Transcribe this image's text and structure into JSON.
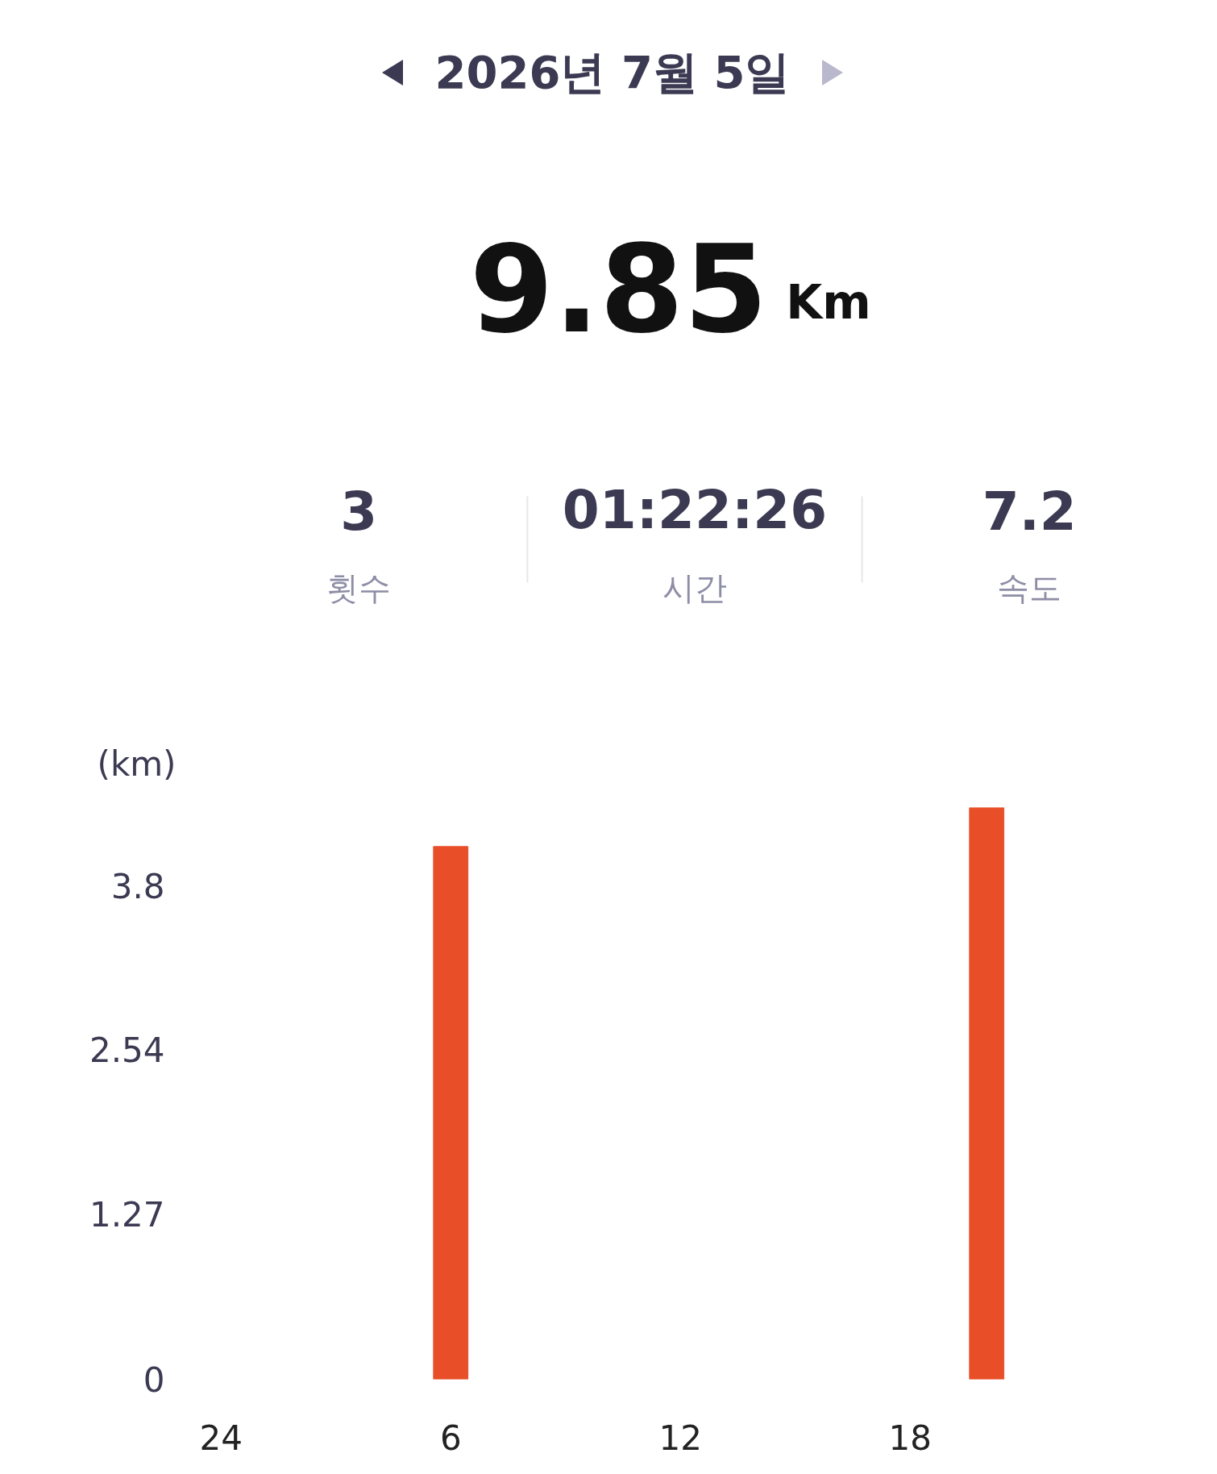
{
  "chart_data": {
    "type": "bar",
    "title": "2026년 7월 5일",
    "subtitle": "9.85",
    "annotations": [
      "Km",
      "3",
      "횟수",
      "01:22:26",
      "시간",
      "7.2",
      "속도"
    ],
    "ylabel": "(km)",
    "categories": [
      "24",
      null,
      null,
      null,
      null,
      null,
      "6",
      null,
      null,
      null,
      null,
      null,
      "12",
      null,
      null,
      null,
      null,
      null,
      "18",
      null,
      null,
      null,
      null,
      null
    ],
    "series": [
      {
        "color": "#e84e27",
        "values": [
          null,
          null,
          null,
          null,
          null,
          null,
          4.1,
          null,
          null,
          null,
          null,
          null,
          null,
          null,
          null,
          null,
          null,
          null,
          null,
          null,
          4.4,
          null,
          null,
          null
        ]
      }
    ],
    "ylim": [
      0,
      4.4
    ],
    "yticks": [
      0,
      1.27,
      2.54,
      3.8
    ],
    "grid": false
  }
}
